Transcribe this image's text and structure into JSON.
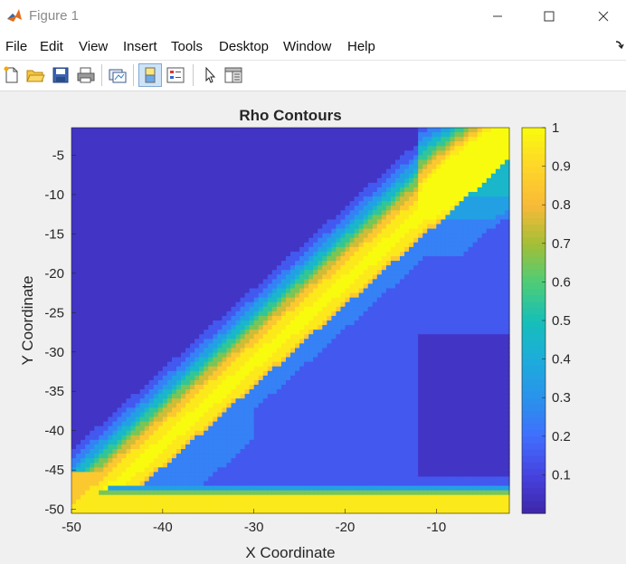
{
  "window": {
    "title": "Figure 1",
    "icon": "matlab-icon"
  },
  "menu": [
    "File",
    "Edit",
    "View",
    "Insert",
    "Tools",
    "Desktop",
    "Window",
    "Help"
  ],
  "toolbar": [
    "new-figure-icon",
    "open-folder-icon",
    "save-icon",
    "print-icon",
    "link-plot-icon",
    "colorbar-toggle-icon",
    "legend-toggle-icon",
    "pointer-icon",
    "property-inspector-icon"
  ],
  "chart_data": {
    "type": "heatmap",
    "title": "Rho Contours",
    "xlabel": "X Coordinate",
    "ylabel": "Y Coordinate",
    "xlim": [
      -50,
      -2
    ],
    "ylim": [
      -50.5,
      -1.5
    ],
    "xticks": [
      -50,
      -40,
      -30,
      -20,
      -10
    ],
    "yticks": [
      -5,
      -10,
      -15,
      -20,
      -25,
      -30,
      -35,
      -40,
      -45,
      -50
    ],
    "colorbar": {
      "min": 0,
      "max": 1,
      "ticks": [
        0.1,
        0.2,
        0.3,
        0.4,
        0.5,
        0.6,
        0.7,
        0.8,
        0.9,
        1
      ]
    },
    "colormap": "parula",
    "colors": {
      "low": "#3e26a8",
      "mid": "#16b8c7",
      "high": "#f9fb0e"
    }
  }
}
